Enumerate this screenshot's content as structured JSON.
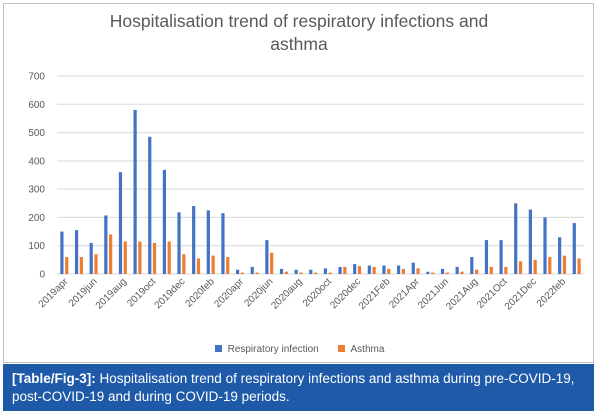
{
  "chart_data": {
    "type": "bar",
    "title": "Hospitalisation trend of respiratory infections and asthma",
    "xlabel": "",
    "ylabel": "",
    "ylim": [
      0,
      700
    ],
    "yticks": [
      0,
      100,
      200,
      300,
      400,
      500,
      600,
      700
    ],
    "grid": true,
    "legend_position": "bottom",
    "categories": [
      "2019apr",
      "2019may",
      "2019jun",
      "2019jul",
      "2019aug",
      "2019sep",
      "2019oct",
      "2019nov",
      "2019dec",
      "2020jan",
      "2020feb",
      "2020mar",
      "2020apr",
      "2020may",
      "2020jun",
      "2020jul",
      "2020aug",
      "2020sep",
      "2020oct",
      "2020nov",
      "2020dec",
      "2021Jan",
      "2021Feb",
      "2021Mar",
      "2021Apr",
      "2021May",
      "2021Jun",
      "2021Jul",
      "2021Aug",
      "2021Sep",
      "2021Oct",
      "2021Nov",
      "2021Dec",
      "2022Jan",
      "2022feb",
      "2022mar"
    ],
    "tick_labels": [
      "2019apr",
      "",
      "2019jun",
      "",
      "2019aug",
      "",
      "2019oct",
      "",
      "2019dec",
      "",
      "2020feb",
      "",
      "2020apr",
      "",
      "2020jun",
      "",
      "2020aug",
      "",
      "2020oct",
      "",
      "2020dec",
      "",
      "2021Feb",
      "",
      "2021Apr",
      "",
      "2021Jun",
      "",
      "2021Aug",
      "",
      "2021Oct",
      "",
      "2021Dec",
      "",
      "2022feb",
      ""
    ],
    "series": [
      {
        "name": "Respiratory infection",
        "color": "#4472c4",
        "values": [
          150,
          155,
          110,
          207,
          360,
          580,
          485,
          368,
          218,
          240,
          225,
          215,
          15,
          25,
          120,
          18,
          15,
          15,
          20,
          25,
          35,
          30,
          30,
          30,
          40,
          8,
          18,
          25,
          60,
          120,
          120,
          250,
          228,
          200,
          130,
          180
        ]
      },
      {
        "name": "Asthma",
        "color": "#ed7d31",
        "values": [
          60,
          60,
          70,
          140,
          115,
          115,
          110,
          115,
          70,
          55,
          65,
          60,
          5,
          5,
          75,
          8,
          5,
          5,
          5,
          25,
          28,
          25,
          18,
          18,
          20,
          5,
          5,
          8,
          15,
          25,
          25,
          45,
          50,
          60,
          65,
          55
        ]
      }
    ]
  },
  "chart_title_line1": "Hospitalisation trend of respiratory infections and",
  "chart_title_line2": "asthma",
  "legend": {
    "item1": "Respiratory infection",
    "item2": "Asthma"
  },
  "caption": {
    "tag": "[Table/Fig-3]:",
    "text": " Hospitalisation trend of respiratory infections and asthma during pre-COVID-19, post-COVID-19 and during COVID-19 periods."
  },
  "colors": {
    "caption_bg": "#1f5aa8",
    "respiratory": "#4472c4",
    "asthma": "#ed7d31",
    "grid": "#d9d9d9"
  }
}
